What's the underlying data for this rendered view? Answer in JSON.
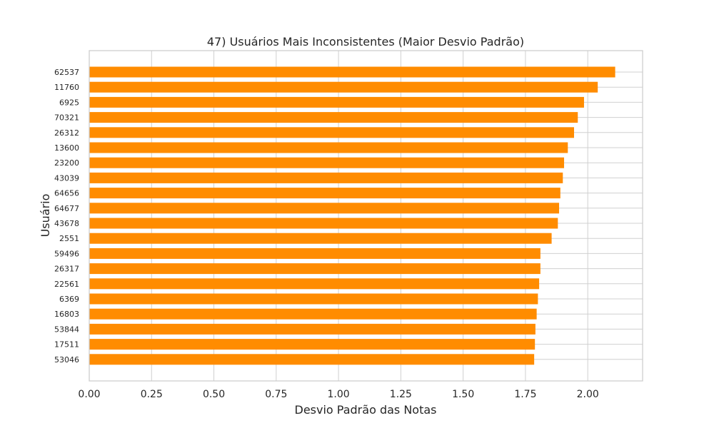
{
  "chart_data": {
    "type": "bar",
    "orientation": "horizontal",
    "title": "47) Usuários Mais Inconsistentes (Maior Desvio Padrão)",
    "xlabel": "Desvio Padrão das Notas",
    "ylabel": "Usuário",
    "xlim": [
      0,
      2.22
    ],
    "x_ticks": [
      "0.00",
      "0.25",
      "0.50",
      "0.75",
      "1.00",
      "1.25",
      "1.50",
      "1.75",
      "2.00"
    ],
    "grid": true,
    "bar_color": "#ff8c00",
    "categories": [
      "62537",
      "11760",
      "6925",
      "70321",
      "26312",
      "13600",
      "23200",
      "43039",
      "64656",
      "64677",
      "43678",
      "2551",
      "59496",
      "26317",
      "22561",
      "6369",
      "16803",
      "53844",
      "17511",
      "53046"
    ],
    "values": [
      2.11,
      2.04,
      1.985,
      1.96,
      1.945,
      1.92,
      1.905,
      1.9,
      1.89,
      1.885,
      1.88,
      1.855,
      1.81,
      1.81,
      1.805,
      1.8,
      1.795,
      1.79,
      1.788,
      1.785
    ]
  }
}
